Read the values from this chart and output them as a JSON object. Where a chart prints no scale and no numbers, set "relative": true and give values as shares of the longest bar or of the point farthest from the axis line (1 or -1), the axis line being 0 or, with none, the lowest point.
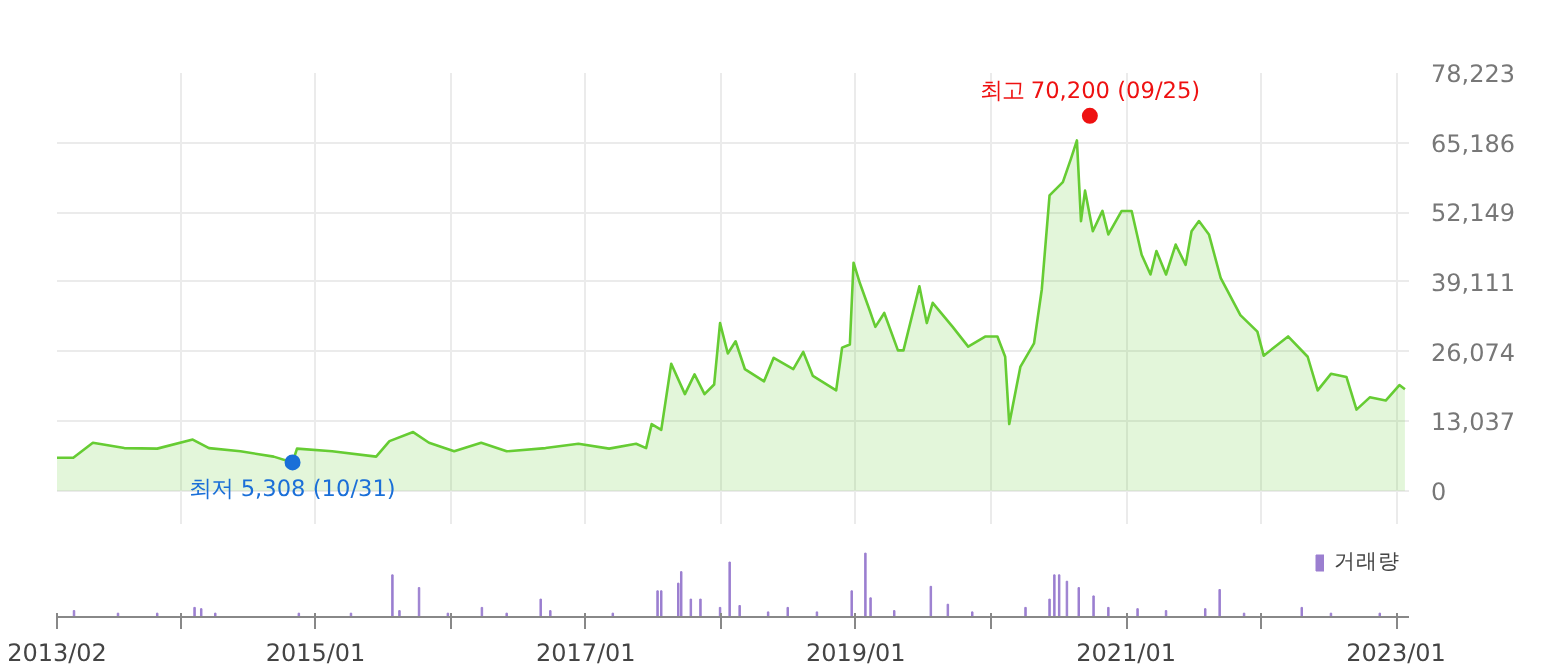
{
  "chart_data": [
    {
      "type": "area",
      "xlim": [
        "2013-02-01",
        "2023-02-05"
      ],
      "ylim": [
        -6400,
        78223
      ],
      "xticks": [
        {
          "value": "2013-02-01",
          "label": null
        },
        {
          "value": "2014-01-01",
          "label": null
        },
        {
          "value": "2015-01-01",
          "label": null
        },
        {
          "value": "2016-01-01",
          "label": null
        },
        {
          "value": "2017-01-01",
          "label": null
        },
        {
          "value": "2018-01-01",
          "label": null
        },
        {
          "value": "2019-01-01",
          "label": null
        },
        {
          "value": "2020-01-01",
          "label": null
        },
        {
          "value": "2021-01-01",
          "label": null
        },
        {
          "value": "2022-01-01",
          "label": null
        },
        {
          "value": "2023-01-01",
          "label": null
        }
      ],
      "yticks": [
        0,
        {
          "value": 13037,
          "label": "13,037"
        },
        {
          "value": 26074,
          "label": "26,074"
        },
        {
          "value": 39111,
          "label": "39,111"
        },
        {
          "value": 52149,
          "label": "52,149"
        },
        {
          "value": 65186,
          "label": "65,186"
        },
        {
          "value": 78223,
          "label": "78,223"
        }
      ],
      "tick_labels": "y",
      "grid": true,
      "series": [
        {
          "color": "#66cc33",
          "x": [
            "2013-02-01",
            "2013-03-17",
            "2013-05-09",
            "2013-08-02",
            "2013-10-30",
            "2014-02-03",
            "2014-03-19",
            "2014-06-12",
            "2014-09-10",
            "2014-10-31",
            "2014-11-12",
            "2015-02-15",
            "2015-06-14",
            "2015-07-20",
            "2015-09-22",
            "2015-11-04",
            "2016-01-11",
            "2016-03-24",
            "2016-06-01",
            "2016-09-14",
            "2016-12-12",
            "2017-03-05",
            "2017-05-17",
            "2017-06-13",
            "2017-06-28",
            "2017-07-24",
            "2017-08-20",
            "2017-09-26",
            "2017-10-22",
            "2017-11-18",
            "2017-12-14",
            "2017-12-30",
            "2018-01-20",
            "2018-02-10",
            "2018-03-07",
            "2018-04-28",
            "2018-05-24",
            "2018-07-16",
            "2018-08-12",
            "2018-09-07",
            "2018-11-09",
            "2018-11-25",
            "2018-12-16",
            "2018-12-26",
            "2019-01-12",
            "2019-02-07",
            "2019-02-23",
            "2019-03-19",
            "2019-04-25",
            "2019-05-10",
            "2019-06-22",
            "2019-07-12",
            "2019-07-28",
            "2019-09-20",
            "2019-11-01",
            "2019-12-18",
            "2020-01-19",
            "2020-02-09",
            "2020-02-20",
            "2020-03-21",
            "2020-04-27",
            "2020-05-18",
            "2020-06-08",
            "2020-07-14",
            "2020-08-05",
            "2020-08-21",
            "2020-09-01",
            "2020-09-12",
            "2020-10-03",
            "2020-10-29",
            "2020-11-14",
            "2020-12-20",
            "2021-01-16",
            "2021-02-12",
            "2021-03-08",
            "2021-03-24",
            "2021-04-19",
            "2021-05-15",
            "2021-06-11",
            "2021-06-27",
            "2021-07-17",
            "2021-08-13",
            "2021-09-14",
            "2021-11-06",
            "2021-12-22",
            "2022-01-08",
            "2022-03-15",
            "2022-05-07",
            "2022-06-03",
            "2022-07-09",
            "2022-08-20",
            "2022-09-16",
            "2022-10-22",
            "2022-12-04",
            "2023-01-10",
            "2023-01-25"
          ],
          "values": [
            6200,
            6200,
            9000,
            8000,
            7900,
            9600,
            8000,
            7400,
            6400,
            5308,
            7900,
            7400,
            6400,
            9300,
            11000,
            9000,
            7400,
            9000,
            7400,
            8000,
            8800,
            7900,
            8800,
            8000,
            12500,
            11400,
            23800,
            18100,
            21800,
            18100,
            19900,
            31400,
            25700,
            28000,
            22800,
            20500,
            24900,
            22800,
            26000,
            21500,
            18800,
            26800,
            27400,
            42700,
            38900,
            33900,
            30700,
            33300,
            26300,
            26300,
            38300,
            31400,
            35200,
            30700,
            27000,
            28900,
            28900,
            25100,
            12500,
            23200,
            27600,
            37700,
            55300,
            57800,
            62200,
            65600,
            50500,
            56200,
            48600,
            52400,
            48000,
            52400,
            52400,
            44200,
            40500,
            44900,
            40500,
            46100,
            42300,
            48600,
            50500,
            48000,
            39800,
            32900,
            29800,
            25300,
            28900,
            25100,
            18800,
            21900,
            21300,
            15200,
            17500,
            16900,
            19800,
            19000
          ]
        }
      ],
      "annotations": [
        {
          "text": "최고 70,200 (09/25)",
          "x": "2020-09-25",
          "y": 70200
        },
        {
          "text": "최저 5,308 (10/31)",
          "x": "2014-10-31",
          "y": 5308
        }
      ]
    },
    {
      "type": "bar",
      "relative": true,
      "xlim": [
        "2013-02-01",
        "2023-02-05"
      ],
      "xticks": [
        {
          "value": "2013-02-01",
          "label": "2013/02"
        },
        {
          "value": "2014-01-01",
          "label": null
        },
        {
          "value": "2015-01-01",
          "label": "2015/01"
        },
        {
          "value": "2016-01-01",
          "label": null
        },
        {
          "value": "2017-01-01",
          "label": "2017/01"
        },
        {
          "value": "2018-01-01",
          "label": null
        },
        {
          "value": "2019-01-01",
          "label": "2019/01"
        },
        {
          "value": "2020-01-01",
          "label": null
        },
        {
          "value": "2021-01-01",
          "label": "2021/01"
        },
        {
          "value": "2022-01-01",
          "label": null
        },
        {
          "value": "2023-01-01",
          "label": "2023/01"
        }
      ],
      "tick_labels": "x",
      "legend": "top right",
      "series": [
        {
          "name": "거래량",
          "color": "#9b7fd0",
          "x": [
            "2013-03-19",
            "2013-07-16",
            "2013-10-30",
            "2014-02-08",
            "2014-02-26",
            "2014-04-05",
            "2014-11-17",
            "2015-04-07",
            "2015-07-28",
            "2015-08-16",
            "2015-10-08",
            "2015-12-25",
            "2016-03-26",
            "2016-06-01",
            "2016-09-01",
            "2016-09-27",
            "2017-03-15",
            "2017-07-14",
            "2017-07-24",
            "2017-09-08",
            "2017-09-16",
            "2017-10-12",
            "2017-11-07",
            "2017-12-30",
            "2018-01-25",
            "2018-02-21",
            "2018-05-09",
            "2018-07-01",
            "2018-09-18",
            "2018-12-21",
            "2019-01-27",
            "2019-02-10",
            "2019-04-15",
            "2019-07-23",
            "2019-09-07",
            "2019-11-12",
            "2020-04-04",
            "2020-06-08",
            "2020-06-21",
            "2020-07-04",
            "2020-07-25",
            "2020-08-26",
            "2020-10-05",
            "2020-11-14",
            "2021-02-01",
            "2021-04-19",
            "2021-08-03",
            "2021-09-11",
            "2021-11-16",
            "2022-04-21",
            "2022-07-09",
            "2022-11-18"
          ],
          "values": [
            0.1,
            0.06,
            0.06,
            0.15,
            0.13,
            0.06,
            0.06,
            0.06,
            0.66,
            0.1,
            0.46,
            0.06,
            0.15,
            0.06,
            0.28,
            0.1,
            0.06,
            0.41,
            0.41,
            0.53,
            0.71,
            0.28,
            0.28,
            0.15,
            0.86,
            0.18,
            0.08,
            0.15,
            0.08,
            0.41,
            1.0,
            0.3,
            0.1,
            0.48,
            0.2,
            0.08,
            0.15,
            0.28,
            0.66,
            0.66,
            0.56,
            0.46,
            0.33,
            0.15,
            0.13,
            0.1,
            0.13,
            0.43,
            0.06,
            0.15,
            0.06,
            0.06
          ]
        }
      ]
    }
  ]
}
